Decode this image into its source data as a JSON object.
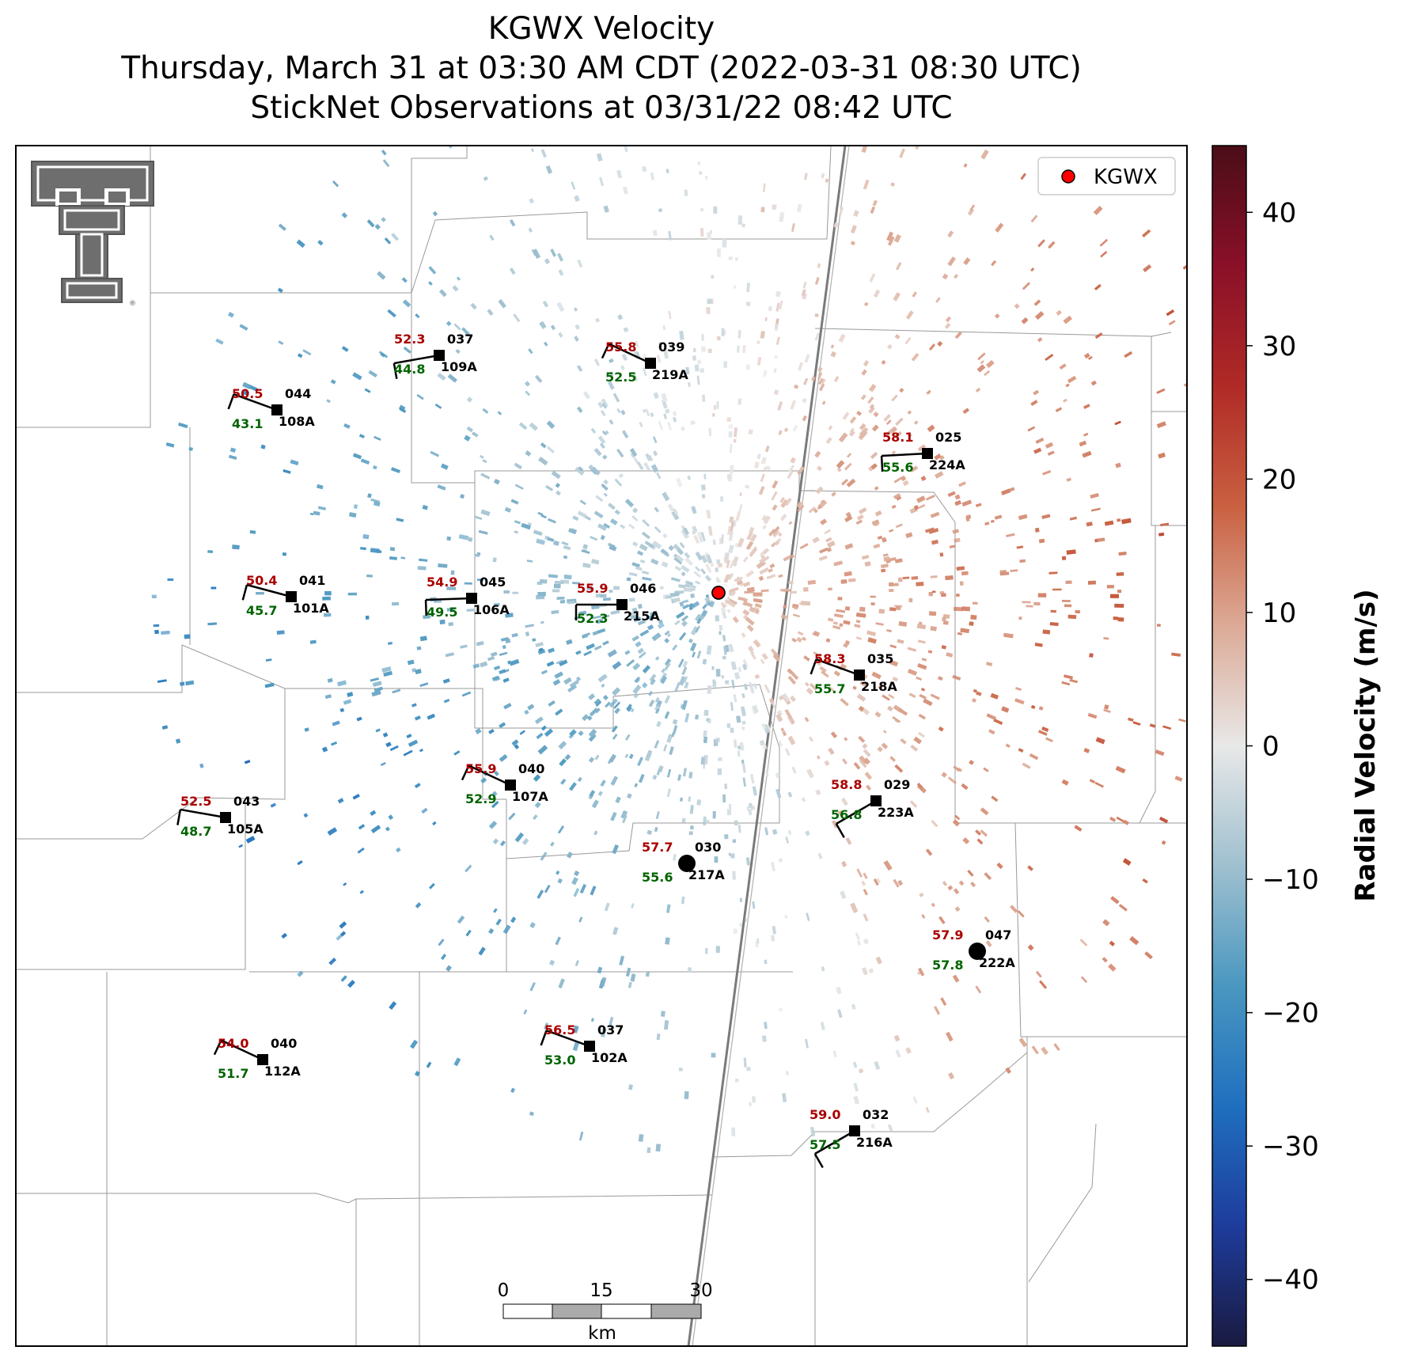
{
  "title": {
    "line1": "KGWX Velocity",
    "line2": "Thursday, March 31 at 03:30 AM CDT (2022-03-31 08:30 UTC)",
    "line3": "StickNet Observations at 03/31/22 08:42 UTC"
  },
  "legend": {
    "label": "KGWX"
  },
  "colorbar": {
    "label": "Radial Velocity (m/s)",
    "range": [
      -45,
      45
    ],
    "ticks": [
      "40",
      "30",
      "20",
      "10",
      "0",
      "−10",
      "−20",
      "−30",
      "−40"
    ],
    "tick_values": [
      40,
      30,
      20,
      10,
      0,
      -10,
      -20,
      -30,
      -40
    ],
    "colors": [
      "#1a1a40",
      "#1e3c9c",
      "#1f6fbf",
      "#4a97c0",
      "#9fc0cf",
      "#e8e8e8",
      "#dcaa96",
      "#c96040",
      "#b02a26",
      "#8a1028",
      "#4a0d18"
    ]
  },
  "scale_bar": {
    "labels": [
      "0",
      "15",
      "30"
    ],
    "unit": "km"
  },
  "radar": {
    "name": "KGWX",
    "color": "#ff0000"
  },
  "stations": [
    {
      "id": "108A",
      "label": "044",
      "temp": "50.5",
      "dew": "43.1",
      "marker": "square"
    },
    {
      "id": "109A",
      "label": "037",
      "temp": "52.3",
      "dew": "44.8",
      "marker": "square"
    },
    {
      "id": "219A",
      "label": "039",
      "temp": "55.8",
      "dew": "52.5",
      "marker": "square"
    },
    {
      "id": "224A",
      "label": "025",
      "temp": "58.1",
      "dew": "55.6",
      "marker": "square"
    },
    {
      "id": "101A",
      "label": "041",
      "temp": "50.4",
      "dew": "45.7",
      "marker": "square"
    },
    {
      "id": "106A",
      "label": "045",
      "temp": "54.9",
      "dew": "49.5",
      "marker": "square"
    },
    {
      "id": "215A",
      "label": "046",
      "temp": "55.9",
      "dew": "52.3",
      "marker": "square"
    },
    {
      "id": "218A",
      "label": "035",
      "temp": "58.3",
      "dew": "55.7",
      "marker": "square"
    },
    {
      "id": "107A",
      "label": "040",
      "temp": "55.9",
      "dew": "52.9",
      "marker": "square"
    },
    {
      "id": "105A",
      "label": "043",
      "temp": "52.5",
      "dew": "48.7",
      "marker": "square"
    },
    {
      "id": "223A",
      "label": "029",
      "temp": "58.8",
      "dew": "56.8",
      "marker": "square"
    },
    {
      "id": "217A",
      "label": "030",
      "temp": "57.7",
      "dew": "55.6",
      "marker": "circle"
    },
    {
      "id": "222A",
      "label": "047",
      "temp": "57.9",
      "dew": "57.8",
      "marker": "circle"
    },
    {
      "id": "112A",
      "label": "040",
      "temp": "54.0",
      "dew": "51.7",
      "marker": "square"
    },
    {
      "id": "102A",
      "label": "037",
      "temp": "56.5",
      "dew": "53.0",
      "marker": "square"
    },
    {
      "id": "216A",
      "label": "032",
      "temp": "59.0",
      "dew": "57.5",
      "marker": "square"
    }
  ]
}
